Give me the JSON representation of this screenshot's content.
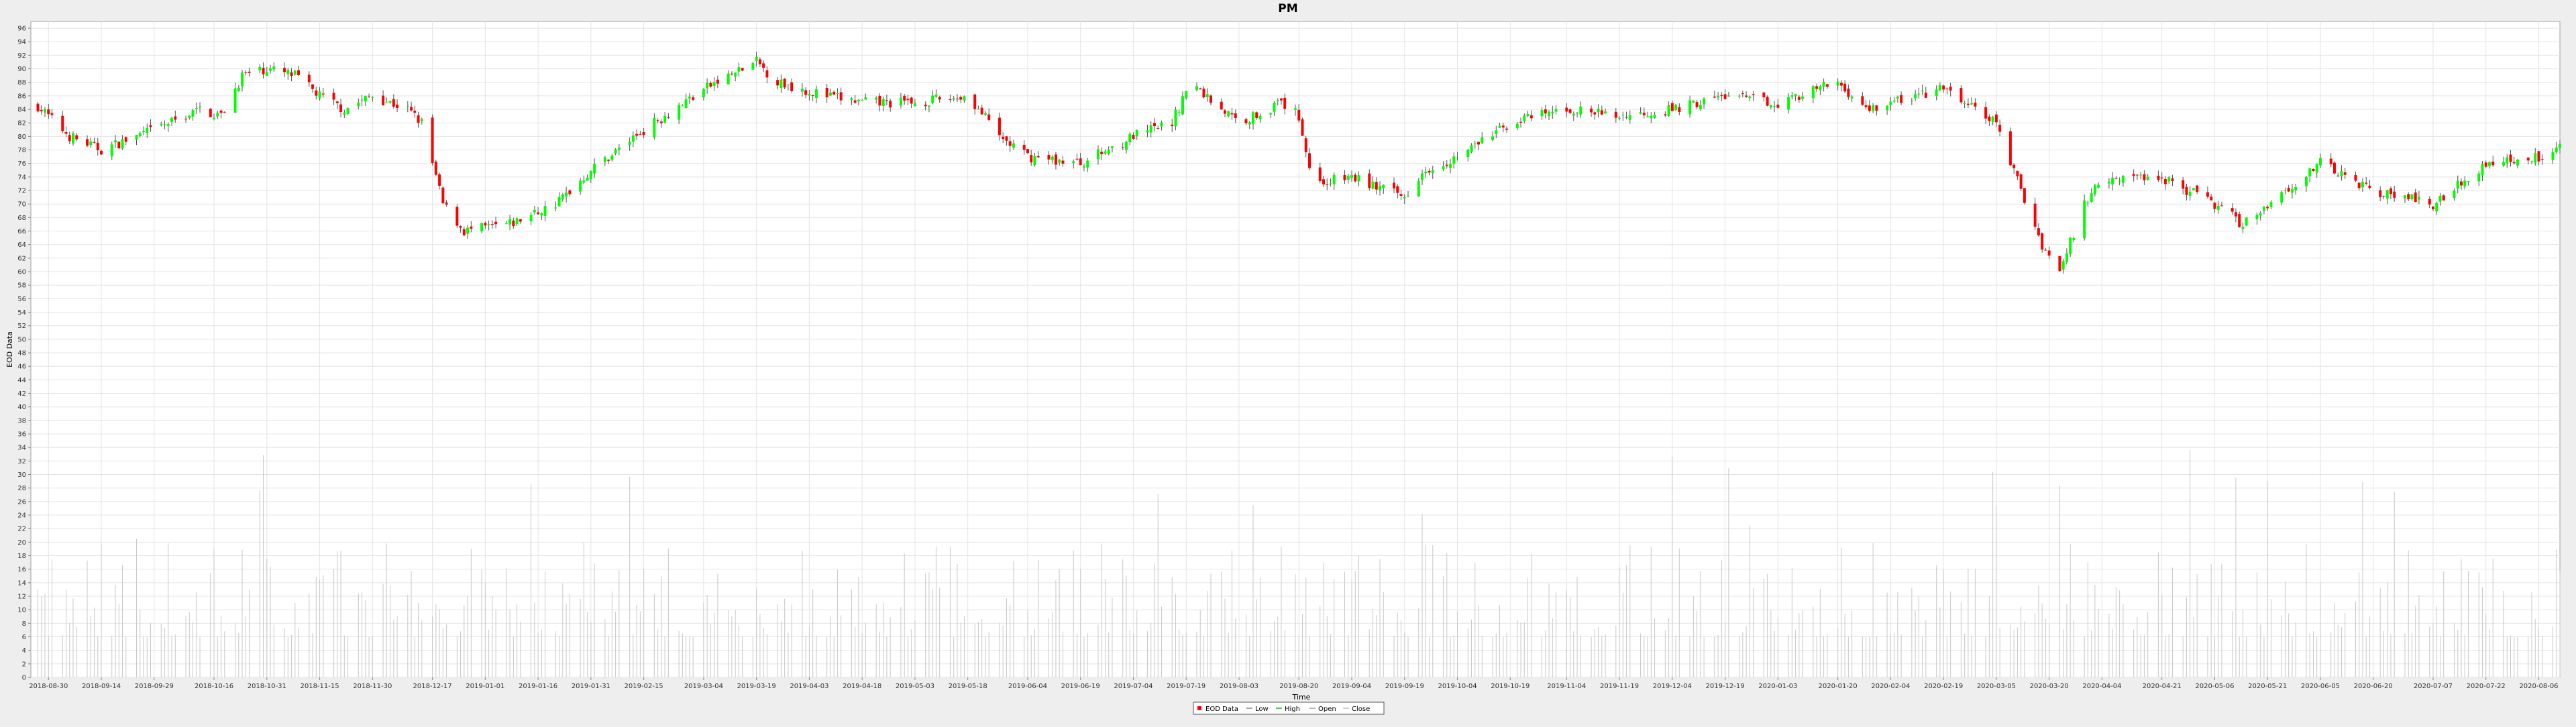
{
  "chart_data": {
    "type": "candlestick",
    "title": "PM",
    "xlabel": "Time",
    "ylabel": "EOD Data",
    "ylim": [
      0,
      97
    ],
    "yticks": [
      0,
      2,
      4,
      6,
      8,
      10,
      12,
      14,
      16,
      18,
      20,
      22,
      24,
      26,
      28,
      30,
      32,
      34,
      36,
      38,
      40,
      42,
      44,
      46,
      48,
      50,
      52,
      54,
      56,
      58,
      60,
      62,
      64,
      66,
      68,
      70,
      72,
      74,
      76,
      78,
      80,
      82,
      84,
      86,
      88,
      90,
      92,
      94,
      96
    ],
    "xrange": [
      "2018-08-25",
      "2020-08-12"
    ],
    "xticks": [
      "2018-08-30",
      "2018-09-14",
      "2018-09-29",
      "2018-10-16",
      "2018-10-31",
      "2018-11-15",
      "2018-11-30",
      "2018-12-17",
      "2019-01-01",
      "2019-01-16",
      "2019-01-31",
      "2019-02-15",
      "2019-03-04",
      "2019-03-19",
      "2019-04-03",
      "2019-04-18",
      "2019-05-03",
      "2019-05-18",
      "2019-06-04",
      "2019-06-19",
      "2019-07-04",
      "2019-07-19",
      "2019-08-03",
      "2019-08-20",
      "2019-09-04",
      "2019-09-19",
      "2019-10-04",
      "2019-10-19",
      "2019-11-04",
      "2019-11-19",
      "2019-12-04",
      "2019-12-19",
      "2020-01-03",
      "2020-01-20",
      "2020-02-04",
      "2020-02-19",
      "2020-03-05",
      "2020-03-20",
      "2020-04-04",
      "2020-04-21",
      "2020-05-06",
      "2020-05-21",
      "2020-06-05",
      "2020-06-20",
      "2020-07-07",
      "2020-07-22",
      "2020-08-06"
    ],
    "grid": true,
    "legend_position": "bottom-center",
    "series": [
      {
        "name": "EOD Data"
      },
      {
        "name": "Low"
      },
      {
        "name": "High"
      },
      {
        "name": "Open"
      },
      {
        "name": "Close"
      }
    ],
    "close_anchors": [
      {
        "date": "2018-08-27",
        "close": 84.5
      },
      {
        "date": "2018-09-05",
        "close": 80.0
      },
      {
        "date": "2018-09-14",
        "close": 78.0
      },
      {
        "date": "2018-09-29",
        "close": 81.0
      },
      {
        "date": "2018-10-12",
        "close": 84.0
      },
      {
        "date": "2018-10-18",
        "close": 83.0
      },
      {
        "date": "2018-10-24",
        "close": 89.0
      },
      {
        "date": "2018-10-31",
        "close": 90.0
      },
      {
        "date": "2018-11-08",
        "close": 89.0
      },
      {
        "date": "2018-11-15",
        "close": 86.0
      },
      {
        "date": "2018-11-22",
        "close": 84.0
      },
      {
        "date": "2018-11-30",
        "close": 86.0
      },
      {
        "date": "2018-12-10",
        "close": 84.0
      },
      {
        "date": "2018-12-14",
        "close": 82.0
      },
      {
        "date": "2018-12-20",
        "close": 70.0
      },
      {
        "date": "2018-12-26",
        "close": 66.0
      },
      {
        "date": "2019-01-08",
        "close": 67.0
      },
      {
        "date": "2019-01-21",
        "close": 70.0
      },
      {
        "date": "2019-01-31",
        "close": 75.0
      },
      {
        "date": "2019-02-15",
        "close": 81.0
      },
      {
        "date": "2019-03-04",
        "close": 87.0
      },
      {
        "date": "2019-03-19",
        "close": 91.0
      },
      {
        "date": "2019-03-25",
        "close": 88.0
      },
      {
        "date": "2019-04-08",
        "close": 86.0
      },
      {
        "date": "2019-04-18",
        "close": 85.0
      },
      {
        "date": "2019-05-03",
        "close": 85.0
      },
      {
        "date": "2019-05-18",
        "close": 86.0
      },
      {
        "date": "2019-05-27",
        "close": 80.0
      },
      {
        "date": "2019-06-04",
        "close": 77.0
      },
      {
        "date": "2019-06-19",
        "close": 76.0
      },
      {
        "date": "2019-07-04",
        "close": 80.0
      },
      {
        "date": "2019-07-15",
        "close": 82.0
      },
      {
        "date": "2019-07-20",
        "close": 88.0
      },
      {
        "date": "2019-08-03",
        "close": 82.0
      },
      {
        "date": "2019-08-15",
        "close": 85.0
      },
      {
        "date": "2019-08-20",
        "close": 83.0
      },
      {
        "date": "2019-08-24",
        "close": 73.0
      },
      {
        "date": "2019-09-04",
        "close": 74.0
      },
      {
        "date": "2019-09-19",
        "close": 71.0
      },
      {
        "date": "2019-09-24",
        "close": 75.0
      },
      {
        "date": "2019-10-04",
        "close": 77.0
      },
      {
        "date": "2019-10-19",
        "close": 82.0
      },
      {
        "date": "2019-11-04",
        "close": 84.0
      },
      {
        "date": "2019-11-19",
        "close": 83.0
      },
      {
        "date": "2019-12-04",
        "close": 84.0
      },
      {
        "date": "2019-12-19",
        "close": 86.0
      },
      {
        "date": "2020-01-03",
        "close": 85.0
      },
      {
        "date": "2020-01-20",
        "close": 88.0
      },
      {
        "date": "2020-01-28",
        "close": 84.0
      },
      {
        "date": "2020-02-04",
        "close": 85.0
      },
      {
        "date": "2020-02-19",
        "close": 87.0
      },
      {
        "date": "2020-03-05",
        "close": 82.0
      },
      {
        "date": "2020-03-12",
        "close": 72.0
      },
      {
        "date": "2020-03-18",
        "close": 64.0
      },
      {
        "date": "2020-03-23",
        "close": 60.0
      },
      {
        "date": "2020-03-30",
        "close": 70.0
      },
      {
        "date": "2020-04-04",
        "close": 74.0
      },
      {
        "date": "2020-04-21",
        "close": 74.0
      },
      {
        "date": "2020-05-06",
        "close": 70.0
      },
      {
        "date": "2020-05-14",
        "close": 67.0
      },
      {
        "date": "2020-05-21",
        "close": 70.0
      },
      {
        "date": "2020-06-05",
        "close": 76.0
      },
      {
        "date": "2020-06-20",
        "close": 72.0
      },
      {
        "date": "2020-07-07",
        "close": 70.0
      },
      {
        "date": "2020-07-22",
        "close": 76.0
      },
      {
        "date": "2020-08-06",
        "close": 77.0
      },
      {
        "date": "2020-08-12",
        "close": 79.0
      }
    ],
    "volume_range": [
      4,
      45
    ],
    "colors": {
      "up": "#00ff00",
      "down": "#ff0000",
      "wick": "#505050",
      "volume": "#c8c8c8",
      "grid": "#e4e4e4",
      "plot_bg": "#ffffff",
      "page_bg": "#eeeeee"
    }
  }
}
